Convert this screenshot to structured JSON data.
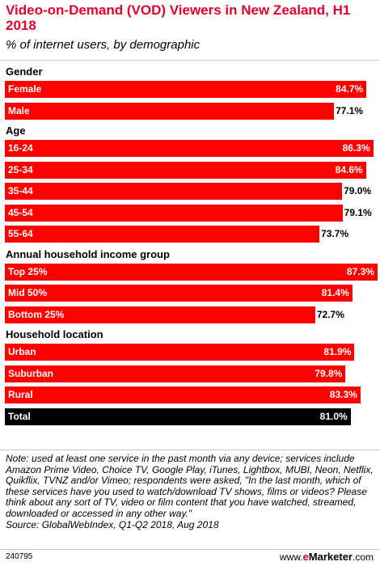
{
  "chart_data": {
    "type": "bar",
    "title": "Video-on-Demand (VOD) Viewers in New Zealand, H1 2018",
    "subtitle": "% of internet users, by demographic",
    "xlim": [
      0,
      100
    ],
    "groups": [
      {
        "label": "Gender",
        "items": [
          {
            "category": "Female",
            "value": 84.7,
            "label": "84.7%"
          },
          {
            "category": "Male",
            "value": 77.1,
            "label": "77.1%"
          }
        ]
      },
      {
        "label": "Age",
        "items": [
          {
            "category": "16-24",
            "value": 86.3,
            "label": "86.3%"
          },
          {
            "category": "25-34",
            "value": 84.6,
            "label": "84.6%"
          },
          {
            "category": "35-44",
            "value": 79.0,
            "label": "79.0%"
          },
          {
            "category": "45-54",
            "value": 79.1,
            "label": "79.1%"
          },
          {
            "category": "55-64",
            "value": 73.7,
            "label": "73.7%"
          }
        ]
      },
      {
        "label": "Annual household income group",
        "items": [
          {
            "category": "Top 25%",
            "value": 87.3,
            "label": "87.3%"
          },
          {
            "category": "Mid 50%",
            "value": 81.4,
            "label": "81.4%"
          },
          {
            "category": "Bottom 25%",
            "value": 72.7,
            "label": "72.7%"
          }
        ]
      },
      {
        "label": "Household location",
        "items": [
          {
            "category": "Urban",
            "value": 81.9,
            "label": "81.9%"
          },
          {
            "category": "Suburban",
            "value": 79.8,
            "label": "79.8%"
          },
          {
            "category": "Rural",
            "value": 83.3,
            "label": "83.3%"
          }
        ]
      }
    ],
    "total": {
      "category": "Total",
      "value": 81.0,
      "label": "81.0%"
    },
    "colors": {
      "bar": "#ff0000",
      "total": "#000000",
      "title": "#e8002d"
    }
  },
  "note": "Note: used at least one service in the past month via any device; services include Amazon Prime Video, Choice TV, Google Play, iTunes, Lightbox, MUBI, Neon, Netflix, Quikflix, TVNZ and/or Vimeo; respondents were asked, \"In the last month, which of these services have you used to watch/download TV shows, films or videos? Please think about any sort of TV, video or film content that you have watched, streamed, downloaded or accessed in any other way.\"",
  "source": "Source: GlobalWebIndex, Q1-Q2 2018, Aug 2018",
  "footer": {
    "chart_id": "240795",
    "logo_prefix": "www.",
    "logo_brand_e": "e",
    "logo_brand": "Marketer",
    "logo_suffix": ".com"
  }
}
